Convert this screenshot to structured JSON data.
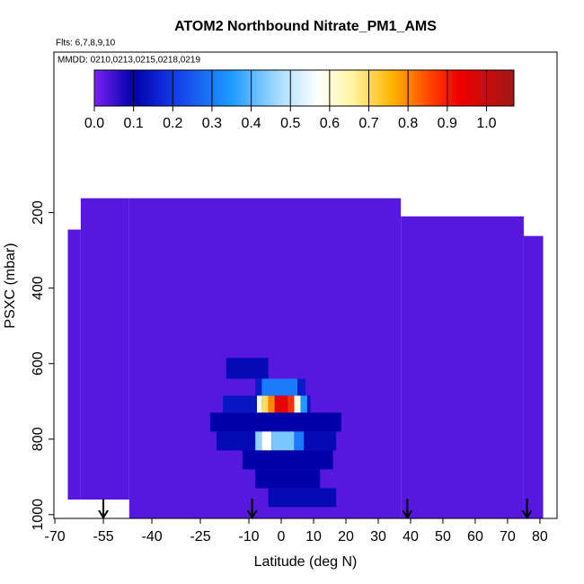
{
  "chart_data": {
    "type": "heatmap",
    "title": "ATOM2 Northbound Nitrate_PM1_AMS",
    "flights_label": "Flts: 6,7,8,9,10",
    "dates_label": "MMDD: 0210,0213,0215,0218,0219",
    "xlabel": "Latitude (deg N)",
    "ylabel": "PSXC (mbar)",
    "xlim": [
      -70.3,
      85.3
    ],
    "xticks": [
      -70,
      -55,
      -40,
      -25,
      -10,
      0,
      10,
      20,
      30,
      40,
      50,
      60,
      70,
      80
    ],
    "ylim": [
      -225,
      1010
    ],
    "yticks": [
      200,
      400,
      600,
      800,
      1000
    ],
    "clim": [
      0,
      1.07
    ],
    "cticks": [
      {
        "value": 0,
        "label": "0.0"
      },
      0.1,
      0.2,
      0.3,
      0.4,
      0.5,
      0.6,
      0.7,
      0.8,
      0.9,
      {
        "value": 1,
        "label": "1.0"
      }
    ],
    "colorscale": [
      {
        "value": 0,
        "color": "#7b22f5"
      },
      {
        "value": 0.1,
        "color": "#0000a8"
      },
      {
        "value": 0.2,
        "color": "#1438e8"
      },
      {
        "value": 0.35,
        "color": "#1e9bff"
      },
      {
        "value": 0.47,
        "color": "#a8dcff"
      },
      {
        "value": 0.57,
        "color": "#ffffff"
      },
      {
        "value": 0.66,
        "color": "#fff4a0"
      },
      {
        "value": 0.76,
        "color": "#ffb400"
      },
      {
        "value": 0.86,
        "color": "#ff4000"
      },
      {
        "value": 0.93,
        "color": "#f00000"
      },
      {
        "value": 1.07,
        "color": "#a01818"
      }
    ],
    "cells": [
      {
        "lat": [
          -66,
          -62
        ],
        "p": [
          245,
          960
        ],
        "value": 0.03
      },
      {
        "lat": [
          -62,
          -47
        ],
        "p": [
          162,
          960
        ],
        "value": 0.03
      },
      {
        "lat": [
          -47,
          37
        ],
        "p": [
          162,
          1010
        ],
        "value": 0.03
      },
      {
        "lat": [
          37,
          75
        ],
        "p": [
          210,
          1010
        ],
        "value": 0.03
      },
      {
        "lat": [
          75,
          81
        ],
        "p": [
          262,
          1010
        ],
        "value": 0.03
      },
      {
        "lat": [
          -17,
          -4
        ],
        "p": [
          585,
          640
        ],
        "value": 0.12
      },
      {
        "lat": [
          -8,
          7.5
        ],
        "p": [
          640,
          685
        ],
        "value": 0.15
      },
      {
        "lat": [
          -6,
          5
        ],
        "p": [
          640,
          685
        ],
        "value": 0.3
      },
      {
        "lat": [
          -18,
          9
        ],
        "p": [
          685,
          730
        ],
        "value": 0.14
      },
      {
        "lat": [
          -7.5,
          -6
        ],
        "p": [
          685,
          730
        ],
        "value": 0.55
      },
      {
        "lat": [
          -6,
          -4
        ],
        "p": [
          685,
          730
        ],
        "value": 0.7
      },
      {
        "lat": [
          -4,
          -2
        ],
        "p": [
          685,
          730
        ],
        "value": 0.8
      },
      {
        "lat": [
          -2,
          2
        ],
        "p": [
          685,
          730
        ],
        "value": 0.95
      },
      {
        "lat": [
          2,
          4
        ],
        "p": [
          685,
          730
        ],
        "value": 0.88
      },
      {
        "lat": [
          4,
          6
        ],
        "p": [
          685,
          730
        ],
        "value": 0.6
      },
      {
        "lat": [
          6,
          8
        ],
        "p": [
          685,
          730
        ],
        "value": 0.35
      },
      {
        "lat": [
          -22,
          18.6
        ],
        "p": [
          730,
          780
        ],
        "value": 0.1
      },
      {
        "lat": [
          -20,
          17
        ],
        "p": [
          780,
          830
        ],
        "value": 0.12
      },
      {
        "lat": [
          -8,
          -6
        ],
        "p": [
          780,
          830
        ],
        "value": 0.45
      },
      {
        "lat": [
          -6,
          -3
        ],
        "p": [
          780,
          830
        ],
        "value": 0.57
      },
      {
        "lat": [
          -3,
          4
        ],
        "p": [
          780,
          830
        ],
        "value": 0.43
      },
      {
        "lat": [
          4,
          7
        ],
        "p": [
          780,
          830
        ],
        "value": 0.3
      },
      {
        "lat": [
          -12,
          16
        ],
        "p": [
          830,
          880
        ],
        "value": 0.1
      },
      {
        "lat": [
          -8,
          12
        ],
        "p": [
          880,
          930
        ],
        "value": 0.1
      },
      {
        "lat": [
          -4,
          17
        ],
        "p": [
          930,
          980
        ],
        "value": 0.12
      }
    ],
    "arrows": [
      -55,
      -9,
      39,
      76
    ]
  }
}
